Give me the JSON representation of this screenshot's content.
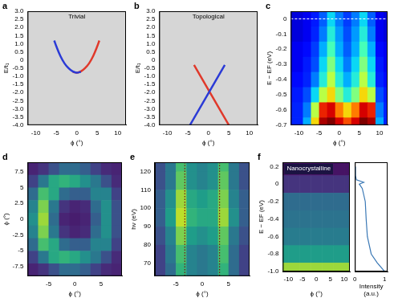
{
  "chart_data": [
    {
      "panel": "a",
      "type": "line",
      "annotation": "Trivial",
      "x_label": "ϕ (°)",
      "y_label": "E/t₁",
      "xlim": [
        -12,
        12
      ],
      "xticks": [
        -10,
        -5,
        0,
        5,
        10
      ],
      "ylim": [
        -4,
        3
      ],
      "yticks": [
        {
          "value": 3,
          "label": "3.0"
        },
        2.5,
        {
          "value": 2,
          "label": "2.0"
        },
        1.5,
        {
          "value": 1,
          "label": "1.0"
        },
        0.5,
        0,
        -0.5,
        {
          "value": -1,
          "label": "-1.0"
        },
        -1.5,
        {
          "value": -2,
          "label": "-2.0"
        },
        -2.5,
        {
          "value": -3,
          "label": "-3.0"
        },
        -3.5,
        {
          "value": -4,
          "label": "-4.0"
        }
      ],
      "series": [
        {
          "color": "#2b3bd6",
          "x": [
            -5.5,
            -5,
            -4,
            -3,
            -2,
            -1,
            0,
            1
          ],
          "values": [
            1.2,
            0.85,
            0.25,
            -0.2,
            -0.5,
            -0.7,
            -0.78,
            -0.72
          ]
        },
        {
          "color": "#e0392b",
          "x": [
            -1,
            0,
            1,
            2,
            3,
            4,
            5,
            5.5
          ],
          "values": [
            -0.72,
            -0.78,
            -0.7,
            -0.5,
            -0.2,
            0.25,
            0.85,
            1.2
          ]
        }
      ]
    },
    {
      "panel": "b",
      "type": "line",
      "annotation": "Topological",
      "x_label": "ϕ (°)",
      "y_label": "E/t₁",
      "xlim": [
        -12,
        12
      ],
      "xticks": [
        -10,
        -5,
        0,
        5,
        10
      ],
      "ylim": [
        -4,
        3
      ],
      "yticks": [
        {
          "value": 3,
          "label": "3.0"
        },
        2.5,
        {
          "value": 2,
          "label": "2.0"
        },
        1.5,
        {
          "value": 1,
          "label": "1.0"
        },
        0.5,
        0,
        -0.5,
        {
          "value": -1,
          "label": "-1.0"
        },
        -1.5,
        {
          "value": -2,
          "label": "-2.0"
        },
        -2.5,
        {
          "value": -3,
          "label": "-3.0"
        },
        -3.5,
        {
          "value": -4,
          "label": "-4.0"
        }
      ],
      "series": [
        {
          "color": "#2b3bd6",
          "x": [
            -4.5,
            4
          ],
          "values": [
            -4,
            -0.3
          ]
        },
        {
          "color": "#e0392b",
          "x": [
            5,
            -3.5
          ],
          "values": [
            -4,
            -0.3
          ]
        }
      ]
    },
    {
      "panel": "c",
      "type": "heatmap",
      "x_label": "ϕ (°)",
      "y_label": "E − EF (eV)",
      "xlim": [
        -12,
        12
      ],
      "xticks": [
        -10,
        -5,
        0,
        5,
        10
      ],
      "ylim": [
        -0.7,
        0.05
      ],
      "yticks": [
        0,
        -0.1,
        -0.2,
        -0.3,
        -0.4,
        -0.5,
        -0.6,
        -0.7
      ],
      "hline": 0,
      "zlim": [
        0,
        1
      ],
      "x": [
        -12,
        -10,
        -8,
        -6,
        -4,
        -2,
        0,
        2,
        4,
        6,
        8,
        10,
        12
      ],
      "y": [
        0,
        -0.1,
        -0.2,
        -0.3,
        -0.4,
        -0.5,
        -0.6,
        -0.7
      ],
      "z": [
        [
          0.08,
          0.08,
          0.1,
          0.14,
          0.22,
          0.35,
          0.25,
          0.18,
          0.25,
          0.35,
          0.22,
          0.1,
          0.08
        ],
        [
          0.08,
          0.08,
          0.1,
          0.15,
          0.25,
          0.4,
          0.28,
          0.2,
          0.28,
          0.4,
          0.25,
          0.1,
          0.08
        ],
        [
          0.1,
          0.1,
          0.12,
          0.18,
          0.3,
          0.45,
          0.3,
          0.22,
          0.3,
          0.45,
          0.3,
          0.12,
          0.1
        ],
        [
          0.1,
          0.1,
          0.14,
          0.2,
          0.35,
          0.5,
          0.35,
          0.25,
          0.35,
          0.5,
          0.35,
          0.14,
          0.1
        ],
        [
          0.12,
          0.12,
          0.15,
          0.25,
          0.4,
          0.55,
          0.4,
          0.3,
          0.4,
          0.55,
          0.4,
          0.15,
          0.12
        ],
        [
          0.14,
          0.14,
          0.2,
          0.35,
          0.55,
          0.65,
          0.5,
          0.4,
          0.5,
          0.65,
          0.55,
          0.2,
          0.14
        ],
        [
          0.15,
          0.15,
          0.25,
          0.55,
          0.85,
          0.9,
          0.75,
          0.65,
          0.75,
          0.9,
          0.85,
          0.25,
          0.15
        ],
        [
          0.15,
          0.15,
          0.3,
          0.65,
          0.95,
          1.0,
          0.9,
          0.8,
          0.9,
          1.0,
          0.95,
          0.3,
          0.15
        ]
      ]
    },
    {
      "panel": "d",
      "type": "heatmap",
      "x_label": "ϕ (°)",
      "y_label": "ϕ (°)",
      "xlim": [
        -9,
        9
      ],
      "xticks": [
        -5,
        0,
        5
      ],
      "ylim": [
        -9,
        9
      ],
      "yticks": [
        -7.5,
        -5,
        -2.5,
        0,
        2.5,
        5,
        7.5
      ],
      "zlim": [
        0,
        1
      ],
      "x": [
        -8,
        -6,
        -4,
        -2,
        0,
        2,
        4,
        6,
        8
      ],
      "y": [
        8,
        6,
        4,
        2,
        0,
        -2,
        -4,
        -6,
        -8
      ],
      "z": [
        [
          0.1,
          0.15,
          0.25,
          0.35,
          0.35,
          0.3,
          0.2,
          0.12,
          0.1
        ],
        [
          0.2,
          0.4,
          0.6,
          0.65,
          0.6,
          0.5,
          0.4,
          0.25,
          0.12
        ],
        [
          0.35,
          0.7,
          0.6,
          0.35,
          0.3,
          0.3,
          0.45,
          0.45,
          0.2
        ],
        [
          0.45,
          0.8,
          0.4,
          0.15,
          0.1,
          0.12,
          0.35,
          0.5,
          0.25
        ],
        [
          0.5,
          0.85,
          0.35,
          0.1,
          0.08,
          0.1,
          0.3,
          0.5,
          0.25
        ],
        [
          0.45,
          0.8,
          0.4,
          0.15,
          0.1,
          0.12,
          0.35,
          0.5,
          0.25
        ],
        [
          0.35,
          0.7,
          0.6,
          0.35,
          0.3,
          0.3,
          0.45,
          0.45,
          0.2
        ],
        [
          0.2,
          0.4,
          0.6,
          0.65,
          0.6,
          0.5,
          0.4,
          0.25,
          0.12
        ],
        [
          0.1,
          0.15,
          0.25,
          0.35,
          0.35,
          0.3,
          0.2,
          0.12,
          0.1
        ]
      ]
    },
    {
      "panel": "e",
      "type": "heatmap",
      "x_label": "ϕ (°)",
      "y_label": "hν (eV)",
      "xlim": [
        -9,
        9
      ],
      "xticks": [
        -5,
        0,
        5
      ],
      "ylim": [
        63,
        125
      ],
      "yticks": [
        70,
        80,
        90,
        100,
        110,
        120
      ],
      "vlines": [
        -3.3,
        3.3
      ],
      "zlim": [
        0,
        1
      ],
      "x": [
        -8,
        -6,
        -4,
        -2,
        0,
        2,
        4,
        6,
        8
      ],
      "y": [
        125,
        115,
        105,
        95,
        85,
        75,
        65
      ],
      "z": [
        [
          0.25,
          0.4,
          0.7,
          0.5,
          0.45,
          0.5,
          0.7,
          0.4,
          0.25
        ],
        [
          0.25,
          0.4,
          0.75,
          0.5,
          0.45,
          0.5,
          0.75,
          0.4,
          0.25
        ],
        [
          0.3,
          0.5,
          0.85,
          0.6,
          0.55,
          0.6,
          0.8,
          0.45,
          0.3
        ],
        [
          0.3,
          0.55,
          0.9,
          0.65,
          0.6,
          0.6,
          0.85,
          0.5,
          0.3
        ],
        [
          0.25,
          0.45,
          0.8,
          0.55,
          0.5,
          0.55,
          0.75,
          0.4,
          0.25
        ],
        [
          0.2,
          0.4,
          0.7,
          0.45,
          0.4,
          0.45,
          0.7,
          0.35,
          0.2
        ],
        [
          0.2,
          0.35,
          0.65,
          0.45,
          0.4,
          0.45,
          0.65,
          0.35,
          0.2
        ]
      ]
    },
    {
      "panel": "f",
      "type": "heatmap",
      "annotation": "Nanocrystalline",
      "x_label": "ϕ (°)",
      "y_label": "E − EF (eV)",
      "xlim": [
        -12,
        12
      ],
      "xticks": [
        -10,
        -5,
        0,
        5,
        10
      ],
      "ylim": [
        -1,
        0.25
      ],
      "yticks": [
        0.2,
        0,
        -0.2,
        -0.4,
        -0.6,
        -0.8,
        {
          "value": -1,
          "label": "-1.0"
        }
      ],
      "zlim": [
        0,
        1
      ],
      "x": [
        -12,
        -8,
        -4,
        0,
        4,
        8,
        12
      ],
      "y": [
        0.2,
        0,
        -0.2,
        -0.4,
        -0.6,
        -0.8,
        -1
      ],
      "z": [
        [
          0.05,
          0.05,
          0.05,
          0.05,
          0.05,
          0.05,
          0.05
        ],
        [
          0.15,
          0.15,
          0.15,
          0.15,
          0.15,
          0.15,
          0.15
        ],
        [
          0.35,
          0.35,
          0.35,
          0.35,
          0.35,
          0.35,
          0.35
        ],
        [
          0.38,
          0.38,
          0.38,
          0.38,
          0.38,
          0.38,
          0.38
        ],
        [
          0.42,
          0.42,
          0.42,
          0.42,
          0.42,
          0.42,
          0.42
        ],
        [
          0.55,
          0.55,
          0.55,
          0.55,
          0.55,
          0.55,
          0.55
        ],
        [
          0.85,
          0.85,
          0.85,
          0.85,
          0.85,
          0.85,
          0.85
        ]
      ]
    },
    {
      "type": "line",
      "x_label": "Intensity (a.u.)",
      "tick_labels": "x",
      "xlim": [
        0,
        1.1
      ],
      "xticks": [
        0,
        1
      ],
      "ylim": [
        -1,
        0.25
      ],
      "series": [
        {
          "color": "#3a78b5",
          "x": [
            0.02,
            0.02,
            0.05,
            0.3,
            0.15,
            0.25,
            0.35,
            0.38,
            0.42,
            0.55,
            0.75,
            1.0
          ],
          "values": [
            0.2,
            0.1,
            0.05,
            0.02,
            0,
            -0.05,
            -0.2,
            -0.4,
            -0.6,
            -0.8,
            -0.9,
            -1
          ]
        }
      ]
    }
  ]
}
